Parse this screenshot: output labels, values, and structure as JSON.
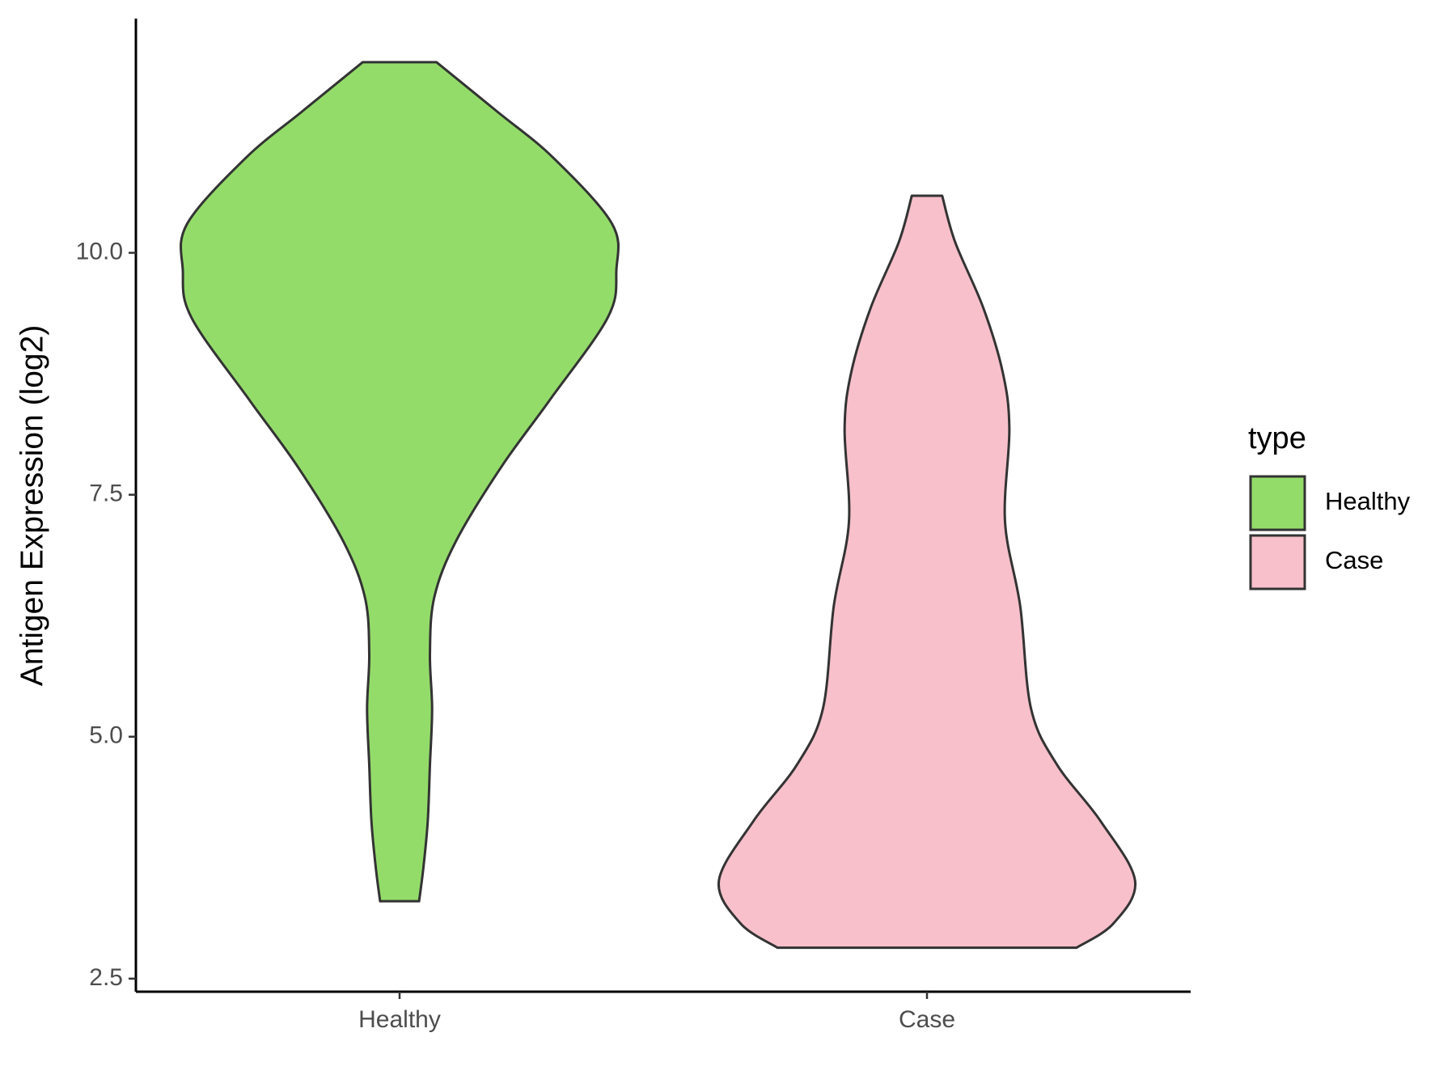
{
  "chart_data": {
    "type": "violin",
    "y_label": "Antigen Expression (log2)",
    "categories": [
      "Healthy",
      "Case"
    ],
    "legend_title": "type",
    "legend_position": "right",
    "ylim": [
      2.365,
      12.42
    ],
    "yticks": [
      2.5,
      {
        "value": 5,
        "label": "5.0"
      },
      7.5,
      {
        "value": 10,
        "label": "10.0"
      }
    ],
    "series": [
      {
        "name": "Healthy",
        "color": "#93dc6a",
        "y": [
          11.97,
          11.46,
          10.98,
          10.3,
          9.82,
          9.33,
          8.47,
          7.79,
          7.02,
          6.44,
          5.86,
          5.29,
          4.71,
          4.13,
          3.65,
          3.3
        ],
        "widths": [
          0.17,
          0.45,
          0.71,
          0.98,
          1.0,
          0.96,
          0.69,
          0.47,
          0.26,
          0.16,
          0.14,
          0.15,
          0.14,
          0.13,
          0.11,
          0.09
        ]
      },
      {
        "name": "Case",
        "color": "#f7c0cb",
        "y": [
          10.59,
          10.11,
          9.43,
          8.76,
          8.18,
          7.22,
          6.35,
          5.29,
          4.71,
          4.13,
          3.51,
          3.07,
          2.82
        ],
        "widths": [
          0.07,
          0.13,
          0.26,
          0.35,
          0.38,
          0.36,
          0.43,
          0.48,
          0.6,
          0.8,
          0.96,
          0.86,
          0.69
        ]
      }
    ]
  }
}
